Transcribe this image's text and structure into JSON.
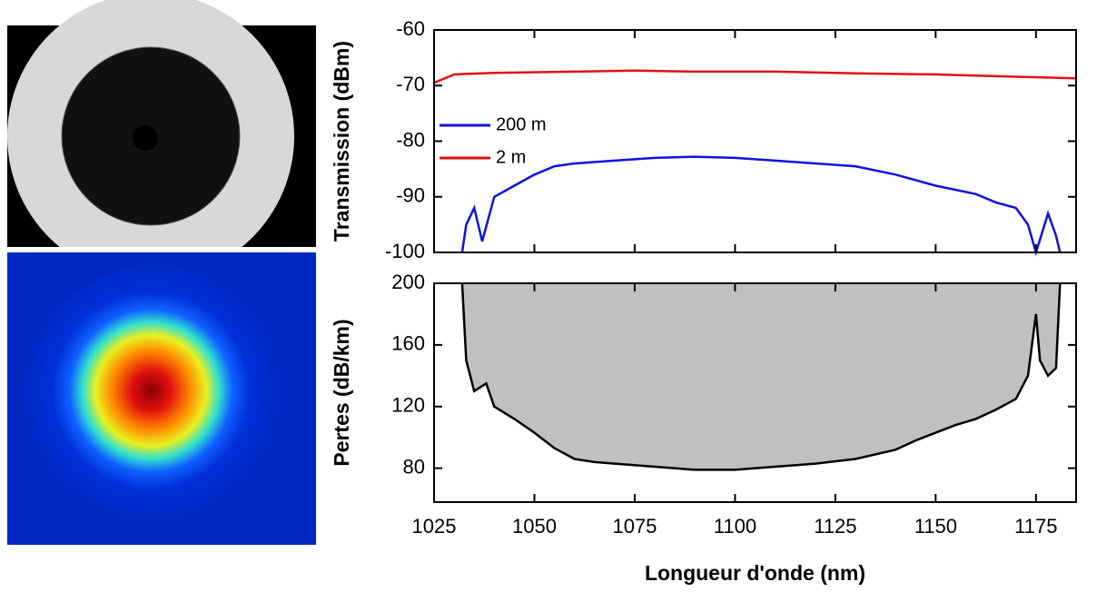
{
  "chart_data": [
    {
      "type": "line",
      "ylabel": "Transmission (dBm)",
      "xlim": [
        1025,
        1185
      ],
      "xticks": [
        1025,
        1050,
        1075,
        1100,
        1125,
        1150,
        1175
      ],
      "ylim": [
        -100,
        -60
      ],
      "yticks": [
        -100,
        -90,
        -80,
        -70,
        -60
      ],
      "legend": "left",
      "series": [
        {
          "name": "200 m",
          "color": "#1010e0",
          "x": [
            1032,
            1033,
            1035,
            1037,
            1040,
            1045,
            1050,
            1055,
            1060,
            1070,
            1080,
            1090,
            1100,
            1110,
            1120,
            1130,
            1140,
            1150,
            1160,
            1165,
            1170,
            1173,
            1175,
            1178,
            1180,
            1181
          ],
          "values": [
            -100,
            -95,
            -92,
            -98,
            -90,
            -88,
            -86,
            -84.5,
            -84,
            -83.5,
            -83,
            -82.8,
            -83,
            -83.5,
            -84,
            -84.5,
            -86,
            -88,
            -89.5,
            -91,
            -92,
            -95,
            -100,
            -93,
            -97,
            -100
          ]
        },
        {
          "name": "2 m",
          "color": "#e01010",
          "x": [
            1025,
            1030,
            1040,
            1060,
            1075,
            1090,
            1110,
            1130,
            1150,
            1170,
            1185
          ],
          "values": [
            -69.5,
            -68,
            -67.7,
            -67.5,
            -67.3,
            -67.5,
            -67.5,
            -67.8,
            -68,
            -68.4,
            -68.7
          ]
        }
      ]
    },
    {
      "type": "area",
      "ylabel": "Pertes (dB/km)",
      "xlabel": "Longueur d'onde (nm)",
      "xlim": [
        1025,
        1185
      ],
      "xticks": [
        1025,
        1050,
        1075,
        1100,
        1125,
        1150,
        1175
      ],
      "ylim": [
        58,
        200
      ],
      "yticks": [
        80,
        120,
        160,
        200
      ],
      "fill": "above",
      "fill_color": "#c0c0c0",
      "color": "#000000",
      "x": [
        1032,
        1033,
        1035,
        1038,
        1040,
        1045,
        1050,
        1055,
        1060,
        1065,
        1070,
        1080,
        1090,
        1100,
        1110,
        1120,
        1130,
        1140,
        1145,
        1150,
        1155,
        1160,
        1165,
        1170,
        1173,
        1175,
        1176,
        1178,
        1180,
        1181
      ],
      "values": [
        200,
        150,
        130,
        135,
        120,
        112,
        103,
        93,
        86,
        84,
        83,
        81,
        79,
        79,
        81,
        83,
        86,
        92,
        98,
        103,
        108,
        112,
        118,
        125,
        140,
        180,
        150,
        140,
        145,
        200
      ]
    }
  ]
}
